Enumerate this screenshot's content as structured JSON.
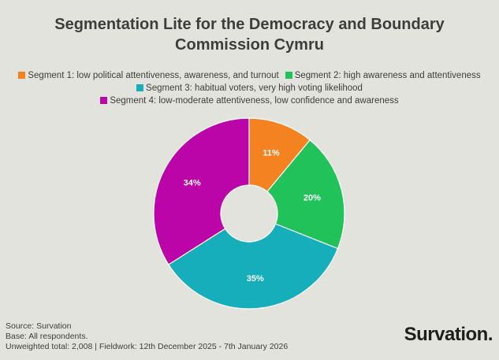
{
  "title_line1": "Segmentation Lite for the Democracy and Boundary",
  "title_line2": "Commission Cymru",
  "chart_data": {
    "type": "pie",
    "donut": true,
    "categories": [
      "Segment 1: low political attentiveness, awareness, and turnout",
      "Segment 2: high awareness and attentiveness",
      "Segment 3: habitual voters, very high voting likelihood",
      "Segment 4: low-moderate attentiveness, low confidence and awareness"
    ],
    "values": [
      11,
      20,
      35,
      34
    ],
    "labels": [
      "11%",
      "20%",
      "35%",
      "34%"
    ],
    "colors": [
      "#f58220",
      "#22c25a",
      "#17aebc",
      "#bb05a8"
    ],
    "legend_position": "top"
  },
  "footer": {
    "source": "Source: Survation",
    "base": "Base: All respondents.",
    "fieldwork": "Unweighted total: 2,008 | Fieldwork: 12th December 2025 - 7th January 2026"
  },
  "brand": "Survation."
}
